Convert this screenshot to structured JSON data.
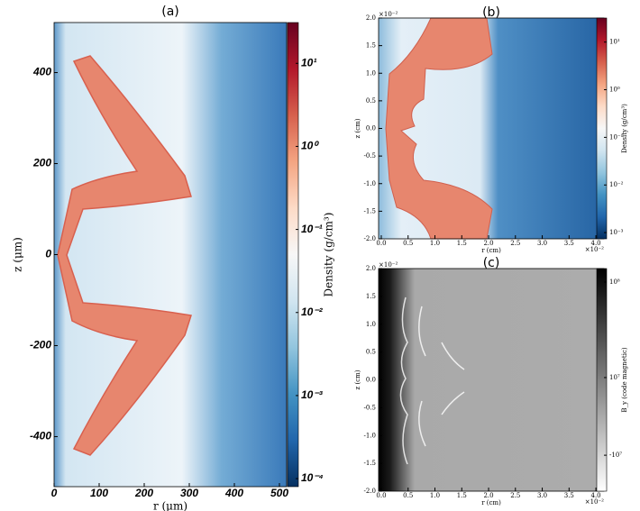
{
  "chart_data": [
    {
      "type": "heatmap",
      "title": "(a)",
      "xlabel": "r (μm)",
      "ylabel": "z (μm)",
      "xlim": [
        0,
        516
      ],
      "xticks": [
        0,
        100,
        200,
        300,
        400,
        500
      ],
      "ylim": [
        -510,
        510
      ],
      "yticks": [
        -400,
        -200,
        0,
        200,
        400
      ],
      "colorbar": {
        "label": "Density (g/cm³)",
        "scale": "log",
        "lim": [
          8e-05,
          31
        ],
        "colormap": [
          "#053061",
          "#2166ac",
          "#4393c3",
          "#92c5de",
          "#d1e5f0",
          "#f7f7f7",
          "#fddbc7",
          "#f4a582",
          "#d6604d",
          "#b2182b",
          "#67001f"
        ],
        "ticks": [
          {
            "value": 10,
            "label": "10¹"
          },
          {
            "value": 1,
            "label": "10⁰"
          },
          {
            "value": 0.1,
            "label": "10⁻¹"
          },
          {
            "value": 0.01,
            "label": "10⁻²"
          },
          {
            "value": 0.001,
            "label": "10⁻³"
          },
          {
            "value": 0.0001,
            "label": "10⁻⁴"
          }
        ]
      }
    },
    {
      "type": "heatmap",
      "title": "(b)",
      "xlabel": "r (cm)",
      "ylabel": "z (cm)",
      "x_offset_label": "×10⁻²",
      "y_offset_label": "×10⁻²",
      "xlim": [
        -0.05,
        4.15
      ],
      "xticks": [
        {
          "value": 0,
          "label": "0.0"
        },
        0.5,
        {
          "value": 1,
          "label": "1.0"
        },
        1.5,
        {
          "value": 2,
          "label": "2.0"
        },
        2.5,
        {
          "value": 3,
          "label": "3.0"
        },
        3.5,
        {
          "value": 4,
          "label": "4.0"
        }
      ],
      "ylim": [
        -2,
        2
      ],
      "yticks": [
        {
          "value": -2,
          "label": "-2.0"
        },
        -1.5,
        {
          "value": -1,
          "label": "-1.0"
        },
        -0.5,
        {
          "value": 0,
          "label": "0.0"
        },
        0.5,
        {
          "value": 1,
          "label": "1.0"
        },
        1.5,
        {
          "value": 2,
          "label": "2.0"
        }
      ],
      "colorbar": {
        "label": "Density (g/cm³)",
        "scale": "log",
        "lim": [
          0.00074,
          32
        ],
        "colormap": [
          "#053061",
          "#2166ac",
          "#4393c3",
          "#92c5de",
          "#d1e5f0",
          "#f7f7f7",
          "#fddbc7",
          "#f4a582",
          "#d6604d",
          "#b2182b",
          "#67001f"
        ],
        "ticks": [
          {
            "value": 10,
            "label": "10¹"
          },
          {
            "value": 1,
            "label": "10⁰"
          },
          {
            "value": 0.1,
            "label": "10⁻¹"
          },
          {
            "value": 0.01,
            "label": "10⁻²"
          },
          {
            "value": 0.001,
            "label": "10⁻³"
          }
        ]
      }
    },
    {
      "type": "heatmap",
      "title": "(c)",
      "xlabel": "r (cm)",
      "ylabel": "z (cm)",
      "x_offset_label": "×10⁻²",
      "y_offset_label": "×10⁻²",
      "xlim": [
        -0.05,
        4.15
      ],
      "xticks": [
        {
          "value": 0,
          "label": "0.0"
        },
        0.5,
        {
          "value": 1,
          "label": "1.0"
        },
        1.5,
        {
          "value": 2,
          "label": "2.0"
        },
        2.5,
        {
          "value": 3,
          "label": "3.0"
        },
        3.5,
        {
          "value": 4,
          "label": "4.0"
        }
      ],
      "ylim": [
        -2,
        2
      ],
      "yticks": [
        {
          "value": -2,
          "label": "-2.0"
        },
        -1.5,
        {
          "value": -1,
          "label": "-1.0"
        },
        -0.5,
        {
          "value": 0,
          "label": "0.0"
        },
        0.5,
        {
          "value": 1,
          "label": "1.0"
        },
        1.5,
        {
          "value": 2,
          "label": "2.0"
        }
      ],
      "colorbar": {
        "label": "B_y (code magnetic)",
        "scale": "symlog",
        "linthresh": 10000000,
        "lim": [
          -28000000,
          130000000
        ],
        "colormap": [
          "#ffffff",
          "#000000"
        ],
        "ticks": [
          {
            "value": 100000000,
            "label": "10⁸"
          },
          {
            "value": 10000000,
            "label": "10⁷"
          },
          {
            "value": -10000000,
            "label": "-10⁷"
          }
        ]
      }
    }
  ]
}
